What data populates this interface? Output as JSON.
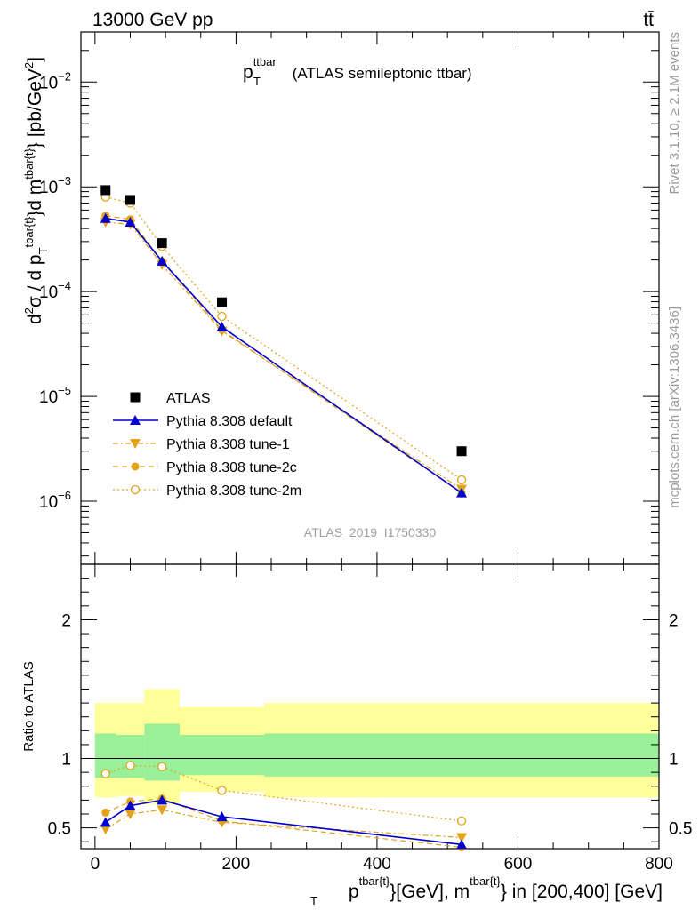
{
  "header": {
    "left": "13000 GeV pp",
    "right": "tt̄",
    "side_rivet": "Rivet 3.1.10, ≥ 2.1M events",
    "side_mcplots": "mcplots.cern.ch [arXiv:1306.3436]"
  },
  "colors": {
    "atlas": "#000000",
    "default": "#0000cc",
    "tune": "#e3a21a",
    "band_inner": "#99f099",
    "band_outer": "#ffff99"
  },
  "chart_data": [
    {
      "type": "scatter",
      "title": {
        "main": "p",
        "sub": "T",
        "sup": "ttbar",
        "rest": " (ATLAS semileptonic ttbar)"
      },
      "watermark": "ATLAS_2019_I1750330",
      "ylabel": "d²σ / d p_T^{tbar{t}}d m^{tbar{t}} [pb/GeV²]",
      "yscale": "log",
      "ylim": [
        2.5e-07,
        0.03
      ],
      "xlim": [
        -20,
        800
      ],
      "yticks": [
        {
          "v": 1e-06,
          "base": "10",
          "exp": "−6"
        },
        {
          "v": 1e-05,
          "base": "10",
          "exp": "−5"
        },
        {
          "v": 0.0001,
          "base": "10",
          "exp": "−4"
        },
        {
          "v": 0.001,
          "base": "10",
          "exp": "−3"
        },
        {
          "v": 0.01,
          "base": "10",
          "exp": "−2"
        }
      ],
      "legend": {
        "position": "bottom-left",
        "entries": [
          "ATLAS",
          "Pythia 8.308 default",
          "Pythia 8.308 tune-1",
          "Pythia 8.308 tune-2c",
          "Pythia 8.308 tune-2m"
        ]
      },
      "series": [
        {
          "name": "ATLAS",
          "x": [
            15,
            50,
            95,
            180,
            520
          ],
          "y": [
            0.00093,
            0.00075,
            0.00029,
            7.9e-05,
            3e-06
          ]
        },
        {
          "name": "Pythia 8.308 default",
          "x": [
            15,
            50,
            95,
            180,
            520
          ],
          "y": [
            0.0005,
            0.00046,
            0.000195,
            4.6e-05,
            1.2e-06
          ]
        },
        {
          "name": "Pythia 8.308 tune-1",
          "x": [
            15,
            50,
            95,
            180,
            520
          ],
          "y": [
            0.00046,
            0.00044,
            0.00018,
            4.2e-05,
            1.3e-06
          ]
        },
        {
          "name": "Pythia 8.308 tune-2c",
          "x": [
            15,
            50,
            95,
            180,
            520
          ],
          "y": [
            0.00053,
            0.00049,
            0.000195,
            4.3e-05,
            1.2e-06
          ]
        },
        {
          "name": "Pythia 8.308 tune-2m",
          "x": [
            15,
            50,
            95,
            180,
            520
          ],
          "y": [
            0.0008,
            0.0007,
            0.00027,
            5.8e-05,
            1.6e-06
          ]
        }
      ]
    },
    {
      "type": "scatter",
      "ylabel": "Ratio to ATLAS",
      "ylim": [
        0.35,
        2.4
      ],
      "xlim": [
        -20,
        800
      ],
      "yticks": [
        0.5,
        1,
        2
      ],
      "xticks": [
        0,
        200,
        400,
        600,
        800
      ],
      "xlabel": {
        "p": "p",
        "p_sub": "T",
        "p_sup": "tbar{t}",
        "mid": "}[GeV], m",
        "m_sup": "tbar{t}",
        "end": "} in [200,400] [GeV]"
      },
      "bands": [
        {
          "x0": 0,
          "x1": 30,
          "inner": [
            0.86,
            1.18
          ],
          "outer": [
            0.72,
            1.4
          ]
        },
        {
          "x0": 30,
          "x1": 70,
          "inner": [
            0.86,
            1.17
          ],
          "outer": [
            0.73,
            1.4
          ]
        },
        {
          "x0": 70,
          "x1": 120,
          "inner": [
            0.84,
            1.25
          ],
          "outer": [
            0.67,
            1.5
          ]
        },
        {
          "x0": 120,
          "x1": 240,
          "inner": [
            0.88,
            1.17
          ],
          "outer": [
            0.76,
            1.37
          ]
        },
        {
          "x0": 240,
          "x1": 800,
          "inner": [
            0.87,
            1.18
          ],
          "outer": [
            0.72,
            1.4
          ]
        }
      ],
      "series": [
        {
          "name": "Pythia 8.308 default",
          "x": [
            15,
            50,
            95,
            180,
            520
          ],
          "y": [
            0.54,
            0.66,
            0.7,
            0.58,
            0.38
          ]
        },
        {
          "name": "Pythia 8.308 tune-1",
          "x": [
            15,
            50,
            95,
            180,
            520
          ],
          "y": [
            0.49,
            0.6,
            0.63,
            0.54,
            0.43
          ]
        },
        {
          "name": "Pythia 8.308 tune-2c",
          "x": [
            15,
            50,
            95,
            180,
            520
          ],
          "y": [
            0.61,
            0.69,
            0.71,
            0.55,
            0.36
          ]
        },
        {
          "name": "Pythia 8.308 tune-2m",
          "x": [
            15,
            50,
            95,
            180,
            520
          ],
          "y": [
            0.89,
            0.95,
            0.94,
            0.77,
            0.55
          ]
        }
      ]
    }
  ]
}
